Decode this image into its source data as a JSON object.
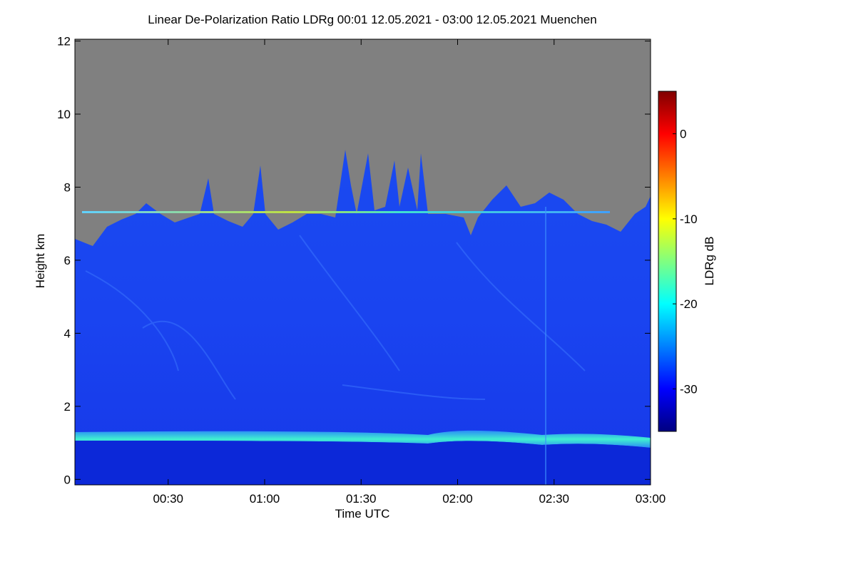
{
  "chart_data": {
    "type": "heatmap",
    "title": "Linear De-Polarization Ratio LDRg   00:01 12.05.2021 - 03:00 12.05.2021 Muenchen",
    "xlabel": "Time UTC",
    "ylabel": "Height km",
    "xlim": [
      1,
      180
    ],
    "xticks": [
      {
        "value": 30,
        "label": "00:30"
      },
      {
        "value": 60,
        "label": "01:00"
      },
      {
        "value": 90,
        "label": "01:30"
      },
      {
        "value": 120,
        "label": "02:00"
      },
      {
        "value": 150,
        "label": "02:30"
      },
      {
        "value": 180,
        "label": "03:00"
      }
    ],
    "ylim": [
      -0.15,
      12.05
    ],
    "yticks": [
      0,
      2,
      4,
      6,
      8,
      10,
      12
    ],
    "colorbar": {
      "label": "LDRg dB",
      "lim": [
        -35,
        5
      ],
      "ticks": [
        0,
        -10,
        -20,
        -30
      ],
      "colormap": [
        "#000080",
        "#0000ff",
        "#0080ff",
        "#00ffff",
        "#80ff80",
        "#ffff00",
        "#ff8000",
        "#ff0000",
        "#800000"
      ]
    }
  }
}
